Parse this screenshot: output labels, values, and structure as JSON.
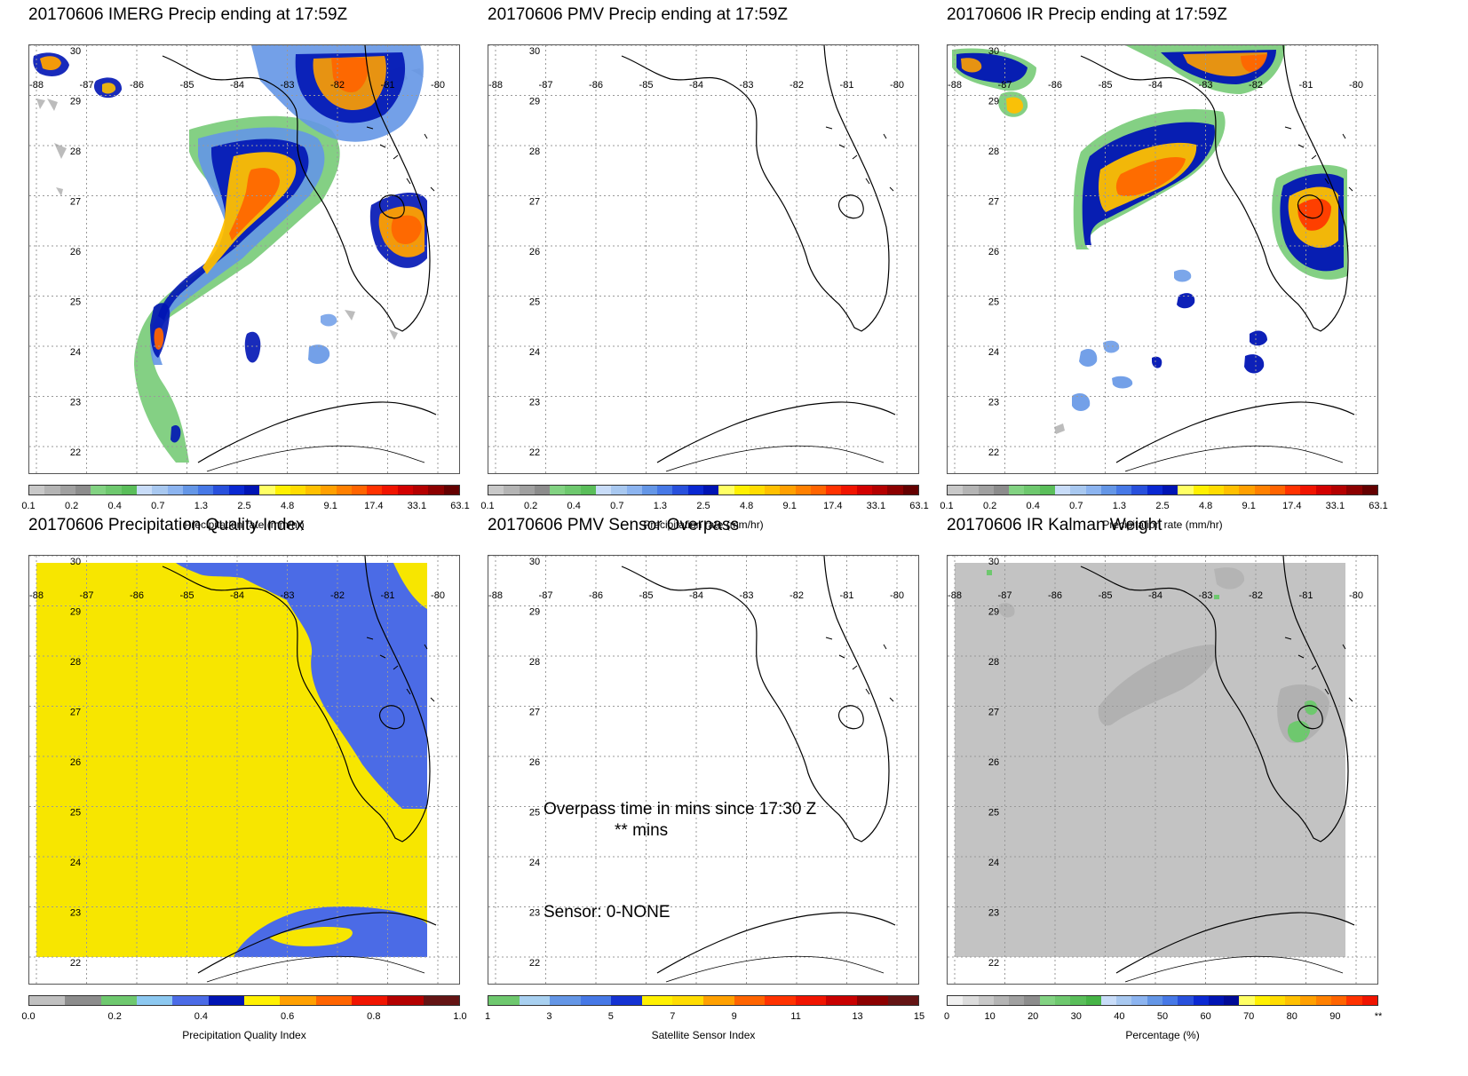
{
  "panels": [
    {
      "title": "20170606 IMERG Precip ending at 17:59Z",
      "colorbar_label": "Precipitation rate (mm/hr)",
      "scale": "precip",
      "field": "imerg"
    },
    {
      "title": "20170606 PMV Precip ending at 17:59Z",
      "colorbar_label": "Precipitation rate (mm/hr)",
      "scale": "precip",
      "field": "none"
    },
    {
      "title": "20170606 IR Precip ending at 17:59Z",
      "colorbar_label": "Precipitation rate (mm/hr)",
      "scale": "precip",
      "field": "ir"
    },
    {
      "title": "20170606 Precipitation Quality Index",
      "colorbar_label": "Precipitation Quality Index",
      "scale": "pqi",
      "field": "pqi"
    },
    {
      "title": "20170606 PMV Sensor Overpass",
      "colorbar_label": "Satellite Sensor Index",
      "scale": "sensor",
      "field": "none",
      "overpass_line1": "Overpass time in mins since 17:30 Z",
      "overpass_line2": "** mins",
      "sensor_line": "Sensor:   0-NONE"
    },
    {
      "title": "20170606 IR Kalman Weight",
      "colorbar_label": "Percentage (%)",
      "scale": "pct",
      "field": "kalman"
    }
  ],
  "lon_labels": [
    "-88",
    "-87",
    "-86",
    "-85",
    "-84",
    "-83",
    "-82",
    "-81",
    "-80"
  ],
  "lat_labels": [
    "30",
    "29",
    "28",
    "27",
    "26",
    "25",
    "24",
    "23",
    "22"
  ],
  "scales": {
    "precip": {
      "ticks": [
        "0.1",
        "0.2",
        "0.4",
        "0.7",
        "1.3",
        "2.5",
        "4.8",
        "9.1",
        "17.4",
        "33.1",
        "63.1"
      ],
      "colors": [
        "#c8c8c8",
        "#b4b4b4",
        "#a0a0a0",
        "#8c8c8c",
        "#82d282",
        "#6ec86e",
        "#5abe5a",
        "#c8dcf8",
        "#a8c8f0",
        "#8cb4f0",
        "#6496e6",
        "#4678e6",
        "#2850dc",
        "#0a28d2",
        "#0014b4",
        "#ffff64",
        "#fff000",
        "#ffdc00",
        "#ffc000",
        "#ffa000",
        "#ff8000",
        "#ff6400",
        "#ff3200",
        "#f01400",
        "#d20000",
        "#b40000",
        "#8c0000",
        "#640000"
      ]
    },
    "pqi": {
      "ticks": [
        "0.0",
        "0.2",
        "0.4",
        "0.6",
        "0.8",
        "1.0"
      ],
      "colors": [
        "#c0c0c0",
        "#8c8c8c",
        "#6ec86e",
        "#8cc8f0",
        "#4b6be6",
        "#0014b4",
        "#fff000",
        "#ffa000",
        "#ff6400",
        "#f01400",
        "#b40000",
        "#641414"
      ]
    },
    "sensor": {
      "ticks": [
        "1",
        "3",
        "5",
        "7",
        "9",
        "11",
        "13",
        "15"
      ],
      "colors": [
        "#6ec86e",
        "#a8d0f0",
        "#6496e6",
        "#4678e6",
        "#1432d2",
        "#fff000",
        "#ffdc00",
        "#ffa000",
        "#ff6400",
        "#ff3200",
        "#f01400",
        "#c80000",
        "#8c0000",
        "#641414"
      ]
    },
    "pct": {
      "ticks": [
        "0",
        "10",
        "20",
        "30",
        "40",
        "50",
        "60",
        "70",
        "80",
        "90",
        "**"
      ],
      "colors": [
        "#f0f0f0",
        "#dcdcdc",
        "#c8c8c8",
        "#b4b4b4",
        "#a0a0a0",
        "#8c8c8c",
        "#82d282",
        "#6ec86e",
        "#5abe5a",
        "#46b446",
        "#c8dcf8",
        "#a8c8f0",
        "#8cb4f0",
        "#6496e6",
        "#4678e6",
        "#2850dc",
        "#0a28d2",
        "#0014b4",
        "#000a96",
        "#ffff64",
        "#fff000",
        "#ffdc00",
        "#ffc000",
        "#ffa000",
        "#ff8000",
        "#ff6400",
        "#ff3200",
        "#f01400"
      ]
    }
  },
  "colors": {
    "coast": "#000000",
    "grid": "#999999",
    "pqi_low": "#f7e600",
    "pqi_high": "#4b6be6",
    "kalman_bg": "#c3c3c3",
    "kalman_dark": "#aaaaaa",
    "kalman_green": "#6ec86e"
  }
}
